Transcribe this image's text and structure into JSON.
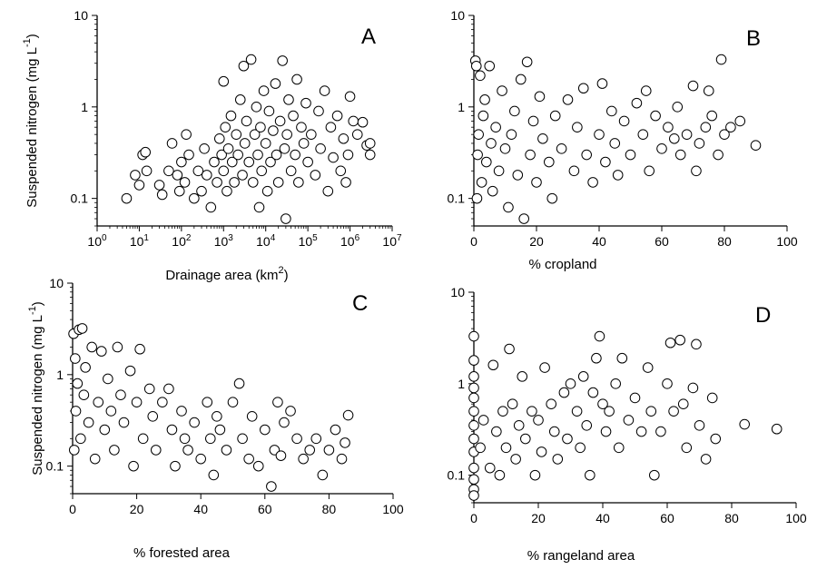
{
  "chart_data": [
    {
      "panel": "A",
      "type": "scatter",
      "xscale": "log",
      "yscale": "log",
      "xlim": [
        1,
        10000000
      ],
      "ylim": [
        0.05,
        10
      ],
      "xticks": [
        {
          "value": 1,
          "base": "10",
          "exp": "0"
        },
        {
          "value": 10,
          "base": "10",
          "exp": "1"
        },
        {
          "value": 100,
          "base": "10",
          "exp": "2"
        },
        {
          "value": 1000,
          "base": "10",
          "exp": "3"
        },
        {
          "value": 10000,
          "base": "10",
          "exp": "4"
        },
        {
          "value": 100000,
          "base": "10",
          "exp": "5"
        },
        {
          "value": 1000000,
          "base": "10",
          "exp": "6"
        },
        {
          "value": 10000000,
          "base": "10",
          "exp": "7"
        }
      ],
      "yticks": [
        {
          "value": 0.1,
          "label": "0.1"
        },
        {
          "value": 1,
          "label": "1"
        },
        {
          "value": 10,
          "label": "10"
        }
      ],
      "xlabel": {
        "main": "Drainage area (km",
        "sup": "2",
        "tail": ")"
      },
      "ylabel": {
        "main": "Suspended nitrogen (mg L",
        "sup": "-1",
        "tail": ")"
      },
      "points": [
        [
          5,
          0.1
        ],
        [
          8,
          0.18
        ],
        [
          10,
          0.14
        ],
        [
          12,
          0.3
        ],
        [
          15,
          0.2
        ],
        [
          14,
          0.32
        ],
        [
          30,
          0.14
        ],
        [
          35,
          0.11
        ],
        [
          50,
          0.2
        ],
        [
          60,
          0.4
        ],
        [
          80,
          0.18
        ],
        [
          90,
          0.12
        ],
        [
          100,
          0.25
        ],
        [
          120,
          0.15
        ],
        [
          130,
          0.5
        ],
        [
          150,
          0.3
        ],
        [
          200,
          0.1
        ],
        [
          250,
          0.2
        ],
        [
          300,
          0.12
        ],
        [
          350,
          0.35
        ],
        [
          400,
          0.18
        ],
        [
          500,
          0.08
        ],
        [
          600,
          0.25
        ],
        [
          700,
          0.15
        ],
        [
          800,
          0.45
        ],
        [
          900,
          0.3
        ],
        [
          1000,
          0.2
        ],
        [
          1000,
          1.9
        ],
        [
          1100,
          0.6
        ],
        [
          1200,
          0.12
        ],
        [
          1300,
          0.35
        ],
        [
          1500,
          0.8
        ],
        [
          1600,
          0.25
        ],
        [
          1800,
          0.15
        ],
        [
          2000,
          0.5
        ],
        [
          2200,
          0.3
        ],
        [
          2500,
          1.2
        ],
        [
          2800,
          0.18
        ],
        [
          3000,
          2.8
        ],
        [
          3200,
          0.4
        ],
        [
          3500,
          0.7
        ],
        [
          4000,
          0.25
        ],
        [
          4500,
          3.3
        ],
        [
          5000,
          0.15
        ],
        [
          5500,
          0.5
        ],
        [
          6000,
          1.0
        ],
        [
          6500,
          0.3
        ],
        [
          7000,
          0.08
        ],
        [
          7500,
          0.6
        ],
        [
          8000,
          0.2
        ],
        [
          9000,
          1.5
        ],
        [
          10000,
          0.4
        ],
        [
          11000,
          0.12
        ],
        [
          12000,
          0.9
        ],
        [
          13000,
          0.25
        ],
        [
          15000,
          0.55
        ],
        [
          17000,
          1.8
        ],
        [
          18000,
          0.3
        ],
        [
          20000,
          0.15
        ],
        [
          22000,
          0.7
        ],
        [
          25000,
          3.2
        ],
        [
          28000,
          0.35
        ],
        [
          30000,
          0.06
        ],
        [
          32000,
          0.5
        ],
        [
          35000,
          1.2
        ],
        [
          40000,
          0.2
        ],
        [
          45000,
          0.8
        ],
        [
          50000,
          0.3
        ],
        [
          55000,
          2.0
        ],
        [
          60000,
          0.15
        ],
        [
          70000,
          0.6
        ],
        [
          80000,
          0.4
        ],
        [
          90000,
          1.1
        ],
        [
          100000,
          0.25
        ],
        [
          120000,
          0.5
        ],
        [
          150000,
          0.18
        ],
        [
          180000,
          0.9
        ],
        [
          200000,
          0.35
        ],
        [
          250000,
          1.5
        ],
        [
          300000,
          0.12
        ],
        [
          350000,
          0.6
        ],
        [
          400000,
          0.28
        ],
        [
          500000,
          0.8
        ],
        [
          600000,
          0.2
        ],
        [
          700000,
          0.45
        ],
        [
          800000,
          0.15
        ],
        [
          900000,
          0.3
        ],
        [
          1000000,
          1.3
        ],
        [
          1200000,
          0.7
        ],
        [
          1500000,
          0.5
        ],
        [
          2000000,
          0.68
        ],
        [
          2500000,
          0.38
        ],
        [
          3000000,
          0.3
        ],
        [
          3000000,
          0.4
        ]
      ]
    },
    {
      "panel": "B",
      "type": "scatter",
      "xscale": "linear",
      "yscale": "log",
      "xlim": [
        0,
        100
      ],
      "ylim": [
        0.05,
        10
      ],
      "xticks": [
        {
          "value": 0,
          "label": "0"
        },
        {
          "value": 20,
          "label": "20"
        },
        {
          "value": 40,
          "label": "40"
        },
        {
          "value": 60,
          "label": "60"
        },
        {
          "value": 80,
          "label": "80"
        },
        {
          "value": 100,
          "label": "100"
        }
      ],
      "yticks": [
        {
          "value": 0.1,
          "label": "0.1"
        },
        {
          "value": 1,
          "label": "1"
        },
        {
          "value": 10,
          "label": "10"
        }
      ],
      "xlabel": {
        "main": "% cropland",
        "sup": "",
        "tail": ""
      },
      "ylabel": {
        "main": "",
        "sup": "",
        "tail": ""
      },
      "points": [
        [
          0.5,
          3.2
        ],
        [
          0.8,
          2.8
        ],
        [
          1,
          0.1
        ],
        [
          1.2,
          0.3
        ],
        [
          1.5,
          0.5
        ],
        [
          2,
          2.2
        ],
        [
          2.5,
          0.15
        ],
        [
          3,
          0.8
        ],
        [
          3.5,
          1.2
        ],
        [
          4,
          0.25
        ],
        [
          5,
          2.8
        ],
        [
          5.5,
          0.4
        ],
        [
          6,
          0.12
        ],
        [
          7,
          0.6
        ],
        [
          8,
          0.2
        ],
        [
          9,
          1.5
        ],
        [
          10,
          0.35
        ],
        [
          11,
          0.08
        ],
        [
          12,
          0.5
        ],
        [
          13,
          0.9
        ],
        [
          14,
          0.18
        ],
        [
          15,
          2.0
        ],
        [
          16,
          0.06
        ],
        [
          17,
          3.1
        ],
        [
          18,
          0.3
        ],
        [
          19,
          0.7
        ],
        [
          20,
          0.15
        ],
        [
          21,
          1.3
        ],
        [
          22,
          0.45
        ],
        [
          24,
          0.25
        ],
        [
          25,
          0.1
        ],
        [
          26,
          0.8
        ],
        [
          28,
          0.35
        ],
        [
          30,
          1.2
        ],
        [
          32,
          0.2
        ],
        [
          33,
          0.6
        ],
        [
          35,
          1.6
        ],
        [
          36,
          0.3
        ],
        [
          38,
          0.15
        ],
        [
          40,
          0.5
        ],
        [
          41,
          1.8
        ],
        [
          42,
          0.25
        ],
        [
          44,
          0.9
        ],
        [
          45,
          0.4
        ],
        [
          46,
          0.18
        ],
        [
          48,
          0.7
        ],
        [
          50,
          0.3
        ],
        [
          52,
          1.1
        ],
        [
          54,
          0.5
        ],
        [
          55,
          1.5
        ],
        [
          56,
          0.2
        ],
        [
          58,
          0.8
        ],
        [
          60,
          0.35
        ],
        [
          62,
          0.6
        ],
        [
          64,
          0.45
        ],
        [
          65,
          1.0
        ],
        [
          66,
          0.3
        ],
        [
          68,
          0.5
        ],
        [
          70,
          1.7
        ],
        [
          71,
          0.2
        ],
        [
          72,
          0.4
        ],
        [
          74,
          0.6
        ],
        [
          75,
          1.5
        ],
        [
          76,
          0.8
        ],
        [
          78,
          0.3
        ],
        [
          79,
          3.3
        ],
        [
          80,
          0.5
        ],
        [
          82,
          0.6
        ],
        [
          85,
          0.7
        ],
        [
          90,
          0.38
        ]
      ]
    },
    {
      "panel": "C",
      "type": "scatter",
      "xscale": "linear",
      "yscale": "log",
      "xlim": [
        0,
        100
      ],
      "ylim": [
        0.05,
        10
      ],
      "xticks": [
        {
          "value": 0,
          "label": "0"
        },
        {
          "value": 20,
          "label": "20"
        },
        {
          "value": 40,
          "label": "40"
        },
        {
          "value": 60,
          "label": "60"
        },
        {
          "value": 80,
          "label": "80"
        },
        {
          "value": 100,
          "label": "100"
        }
      ],
      "yticks": [
        {
          "value": 0.1,
          "label": "0.1"
        },
        {
          "value": 1,
          "label": "1"
        },
        {
          "value": 10,
          "label": "10"
        }
      ],
      "xlabel": {
        "main": "% forested area",
        "sup": "",
        "tail": ""
      },
      "ylabel": {
        "main": "Suspended nitrogen (mg L",
        "sup": "-1",
        "tail": ")"
      },
      "points": [
        [
          0.3,
          2.8
        ],
        [
          0.5,
          0.15
        ],
        [
          0.8,
          1.5
        ],
        [
          1,
          0.4
        ],
        [
          1.5,
          0.8
        ],
        [
          2,
          3.1
        ],
        [
          2.5,
          0.2
        ],
        [
          3,
          3.2
        ],
        [
          3.5,
          0.6
        ],
        [
          4,
          1.2
        ],
        [
          5,
          0.3
        ],
        [
          6,
          2.0
        ],
        [
          7,
          0.12
        ],
        [
          8,
          0.5
        ],
        [
          9,
          1.8
        ],
        [
          10,
          0.25
        ],
        [
          11,
          0.9
        ],
        [
          12,
          0.4
        ],
        [
          13,
          0.15
        ],
        [
          14,
          2.0
        ],
        [
          15,
          0.6
        ],
        [
          16,
          0.3
        ],
        [
          18,
          1.1
        ],
        [
          19,
          0.1
        ],
        [
          20,
          0.5
        ],
        [
          21,
          1.9
        ],
        [
          22,
          0.2
        ],
        [
          24,
          0.7
        ],
        [
          25,
          0.35
        ],
        [
          26,
          0.15
        ],
        [
          28,
          0.5
        ],
        [
          30,
          0.7
        ],
        [
          31,
          0.25
        ],
        [
          32,
          0.1
        ],
        [
          34,
          0.4
        ],
        [
          35,
          0.2
        ],
        [
          36,
          0.15
        ],
        [
          38,
          0.3
        ],
        [
          40,
          0.12
        ],
        [
          42,
          0.5
        ],
        [
          43,
          0.2
        ],
        [
          44,
          0.08
        ],
        [
          45,
          0.35
        ],
        [
          46,
          0.25
        ],
        [
          48,
          0.15
        ],
        [
          50,
          0.5
        ],
        [
          52,
          0.8
        ],
        [
          53,
          0.2
        ],
        [
          55,
          0.12
        ],
        [
          56,
          0.35
        ],
        [
          58,
          0.1
        ],
        [
          60,
          0.25
        ],
        [
          62,
          0.06
        ],
        [
          63,
          0.15
        ],
        [
          64,
          0.5
        ],
        [
          65,
          0.13
        ],
        [
          66,
          0.3
        ],
        [
          68,
          0.4
        ],
        [
          70,
          0.2
        ],
        [
          72,
          0.12
        ],
        [
          74,
          0.15
        ],
        [
          76,
          0.2
        ],
        [
          78,
          0.08
        ],
        [
          80,
          0.15
        ],
        [
          82,
          0.25
        ],
        [
          84,
          0.12
        ],
        [
          85,
          0.18
        ],
        [
          86,
          0.36
        ]
      ]
    },
    {
      "panel": "D",
      "type": "scatter",
      "xscale": "linear",
      "yscale": "log",
      "xlim": [
        0,
        100
      ],
      "ylim": [
        0.05,
        10
      ],
      "xticks": [
        {
          "value": 0,
          "label": "0"
        },
        {
          "value": 20,
          "label": "20"
        },
        {
          "value": 40,
          "label": "40"
        },
        {
          "value": 60,
          "label": "60"
        },
        {
          "value": 80,
          "label": "80"
        },
        {
          "value": 100,
          "label": "100"
        }
      ],
      "yticks": [
        {
          "value": 0.1,
          "label": "0.1"
        },
        {
          "value": 1,
          "label": "1"
        },
        {
          "value": 10,
          "label": "10"
        }
      ],
      "xlabel": {
        "main": "% rangeland area",
        "sup": "",
        "tail": ""
      },
      "ylabel": {
        "main": "",
        "sup": "",
        "tail": ""
      },
      "points": [
        [
          0,
          3.3
        ],
        [
          0,
          1.8
        ],
        [
          0,
          1.2
        ],
        [
          0,
          0.9
        ],
        [
          0,
          0.7
        ],
        [
          0,
          0.5
        ],
        [
          0,
          0.35
        ],
        [
          0,
          0.25
        ],
        [
          0,
          0.18
        ],
        [
          0,
          0.12
        ],
        [
          0,
          0.09
        ],
        [
          0,
          0.07
        ],
        [
          0,
          0.06
        ],
        [
          2,
          0.2
        ],
        [
          3,
          0.4
        ],
        [
          5,
          0.12
        ],
        [
          6,
          1.6
        ],
        [
          7,
          0.3
        ],
        [
          8,
          0.1
        ],
        [
          9,
          0.5
        ],
        [
          10,
          0.2
        ],
        [
          11,
          2.4
        ],
        [
          12,
          0.6
        ],
        [
          13,
          0.15
        ],
        [
          14,
          0.35
        ],
        [
          15,
          1.2
        ],
        [
          16,
          0.25
        ],
        [
          18,
          0.5
        ],
        [
          19,
          0.1
        ],
        [
          20,
          0.4
        ],
        [
          21,
          0.18
        ],
        [
          22,
          1.5
        ],
        [
          24,
          0.6
        ],
        [
          25,
          0.3
        ],
        [
          26,
          0.15
        ],
        [
          28,
          0.8
        ],
        [
          29,
          0.25
        ],
        [
          30,
          1.0
        ],
        [
          32,
          0.5
        ],
        [
          33,
          0.2
        ],
        [
          34,
          1.2
        ],
        [
          35,
          0.35
        ],
        [
          36,
          0.1
        ],
        [
          37,
          0.8
        ],
        [
          38,
          1.9
        ],
        [
          39,
          3.3
        ],
        [
          40,
          0.6
        ],
        [
          41,
          0.3
        ],
        [
          42,
          0.5
        ],
        [
          44,
          1.0
        ],
        [
          45,
          0.2
        ],
        [
          46,
          1.9
        ],
        [
          48,
          0.4
        ],
        [
          50,
          0.7
        ],
        [
          52,
          0.3
        ],
        [
          54,
          1.5
        ],
        [
          55,
          0.5
        ],
        [
          56,
          0.1
        ],
        [
          58,
          0.3
        ],
        [
          60,
          1.0
        ],
        [
          61,
          2.8
        ],
        [
          62,
          0.5
        ],
        [
          64,
          3.0
        ],
        [
          65,
          0.6
        ],
        [
          66,
          0.2
        ],
        [
          68,
          0.9
        ],
        [
          69,
          2.7
        ],
        [
          70,
          0.35
        ],
        [
          72,
          0.15
        ],
        [
          74,
          0.7
        ],
        [
          75,
          0.25
        ],
        [
          84,
          0.36
        ],
        [
          94,
          0.32
        ]
      ]
    }
  ]
}
